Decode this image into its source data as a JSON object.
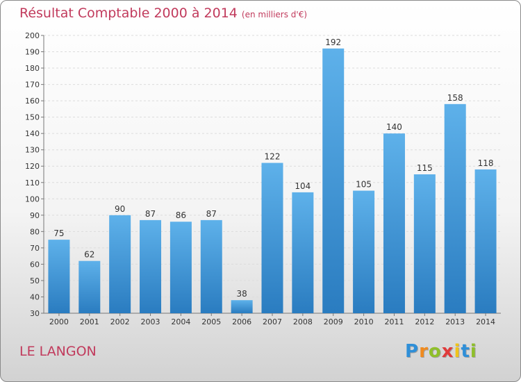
{
  "chart_data": {
    "type": "bar",
    "title": "Résultat Comptable 2000 à 2014",
    "subtitle": "(en milliers d'€)",
    "categories": [
      "2000",
      "2001",
      "2002",
      "2003",
      "2004",
      "2005",
      "2006",
      "2007",
      "2008",
      "2009",
      "2010",
      "2011",
      "2012",
      "2013",
      "2014"
    ],
    "values": [
      75,
      62,
      90,
      87,
      86,
      87,
      38,
      122,
      104,
      192,
      105,
      140,
      115,
      158,
      118
    ],
    "ylim": [
      30,
      200
    ],
    "yticks": [
      30,
      40,
      50,
      60,
      70,
      80,
      90,
      100,
      110,
      120,
      130,
      140,
      150,
      160,
      170,
      180,
      190,
      200
    ],
    "grid": true,
    "bar_color": "#3f94d6"
  },
  "footer": {
    "commune": "LE LANGON",
    "logo_text": "Proxiti",
    "logo_letters": [
      {
        "ch": "P",
        "color": "#2f8fd8"
      },
      {
        "ch": "r",
        "color": "#f08a1e"
      },
      {
        "ch": "o",
        "color": "#8fbf2a"
      },
      {
        "ch": "x",
        "color": "#e03b3b"
      },
      {
        "ch": "i",
        "color": "#f0c419"
      },
      {
        "ch": "t",
        "color": "#2f8fd8"
      },
      {
        "ch": "i",
        "color": "#8fbf2a"
      }
    ]
  }
}
